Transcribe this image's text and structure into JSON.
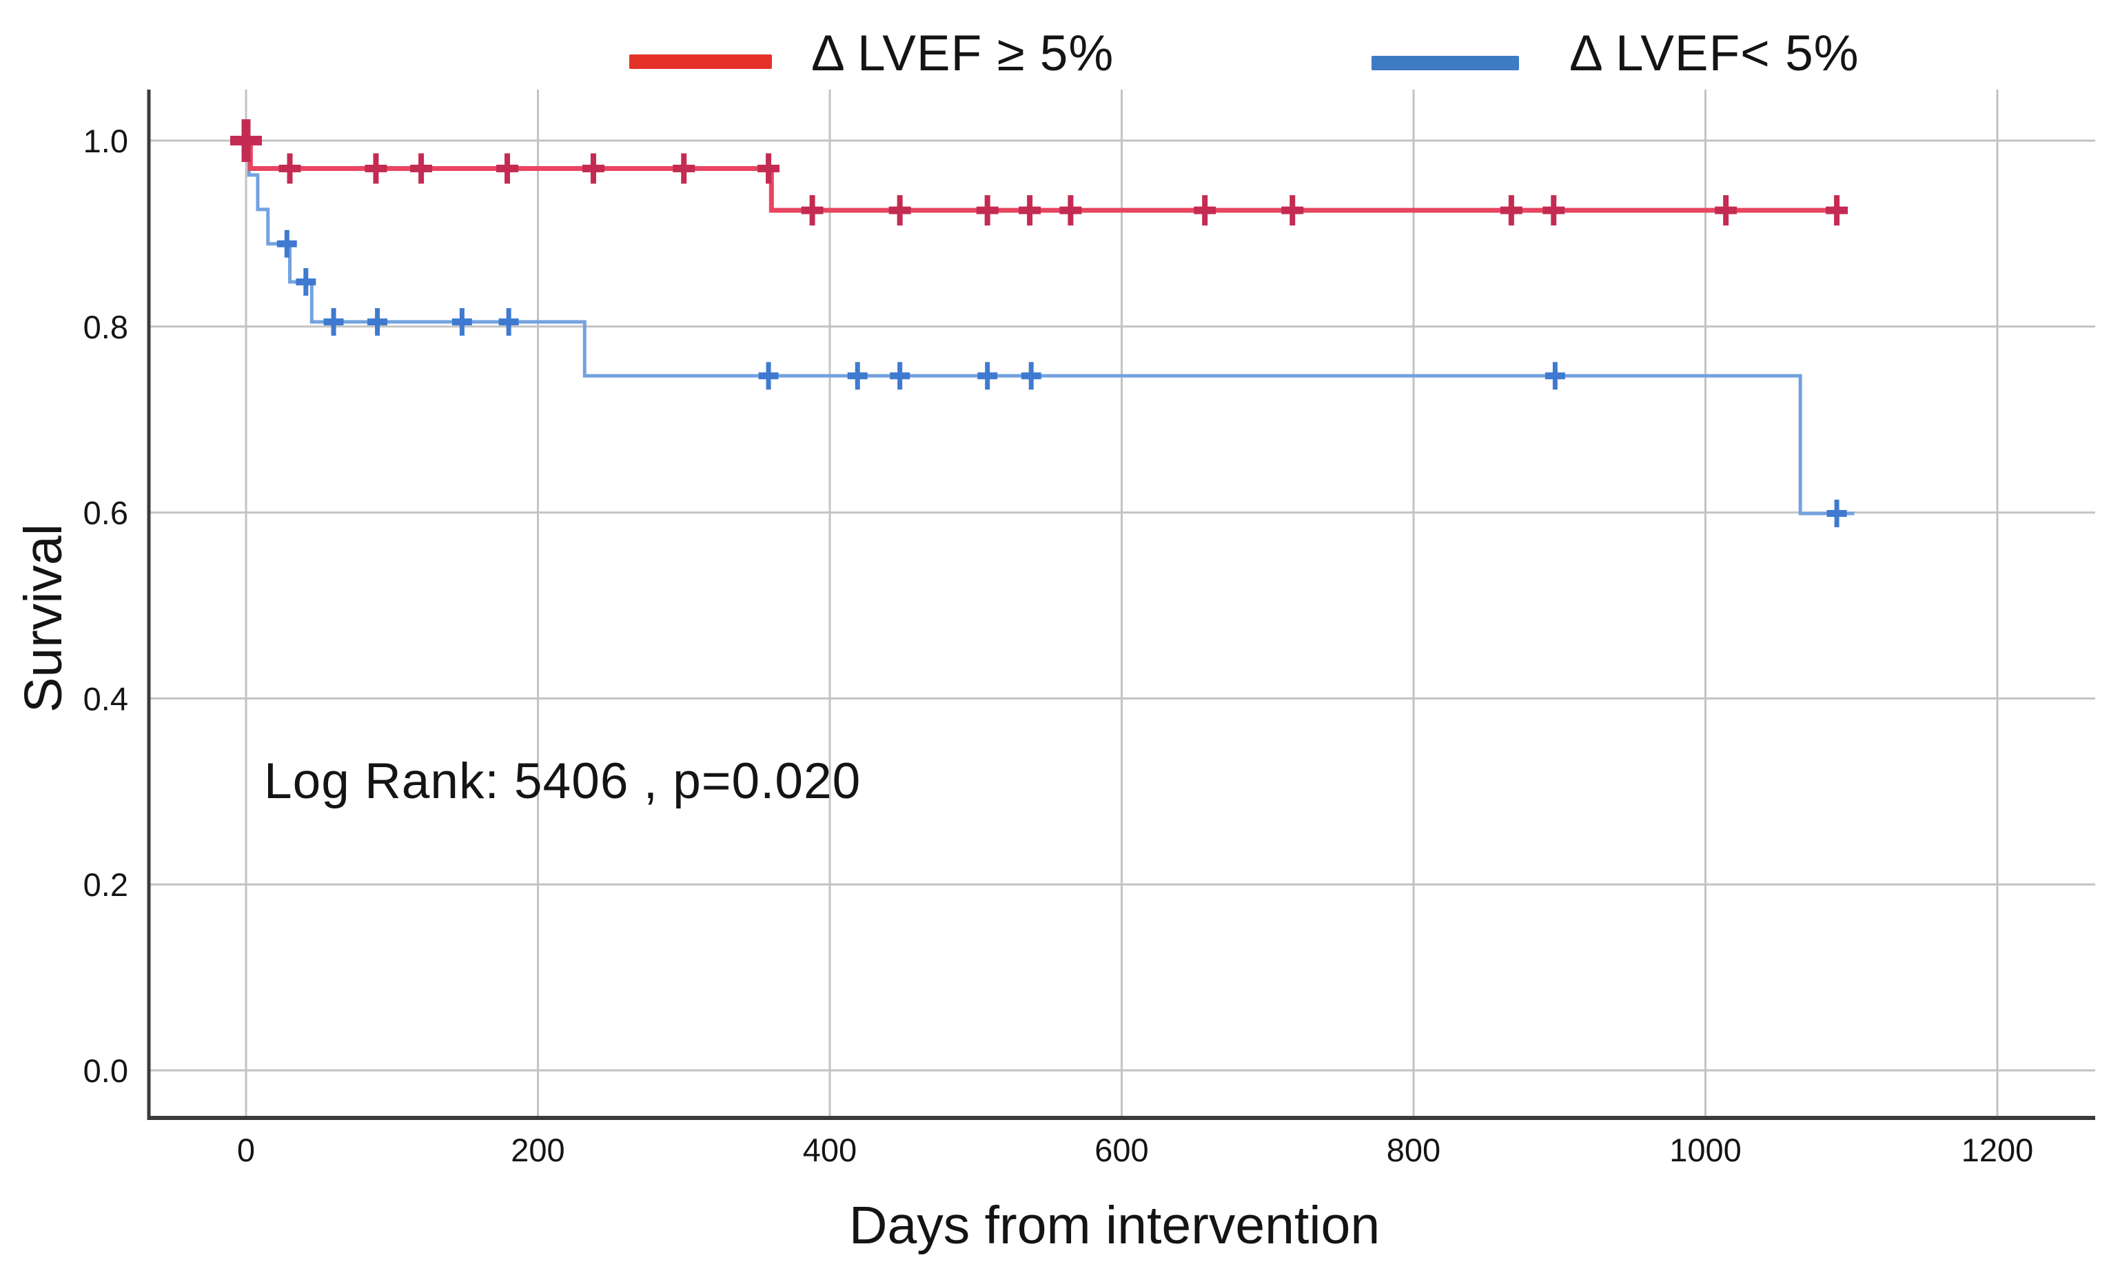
{
  "page": {
    "background": "#ffffff"
  },
  "legend": {
    "items": [
      {
        "label": "Δ LVEF ≥ 5%",
        "swatch_color": "#e43229"
      },
      {
        "label": "Δ LVEF< 5%",
        "swatch_color": "#3e7bc2"
      }
    ]
  },
  "chart_data": {
    "type": "line",
    "subtype": "kaplan-meier-step",
    "title": "",
    "xlabel": "Days from intervention",
    "ylabel": "Survival",
    "xlim": [
      0,
      1200
    ],
    "ylim": [
      0.0,
      1.0
    ],
    "xticks": [
      0,
      200,
      400,
      600,
      800,
      1000,
      1200
    ],
    "yticks": [
      1.0,
      0.8,
      0.6,
      0.4,
      0.2,
      0.0
    ],
    "grid": true,
    "gridline_color": "#c3c3c3",
    "axis_color": "#3b3b3b",
    "legend_position": "top",
    "stats_label": "Log Rank: 5406 , p=0.020",
    "series": [
      {
        "name": "Δ LVEF ≥ 5%",
        "line_color": "#e84560",
        "censor_color": "#c42b52",
        "line_width": 7,
        "steps": [
          [
            0,
            1.0
          ],
          [
            3,
            0.97
          ],
          [
            360,
            0.925
          ]
        ],
        "end_day": 1095,
        "censors": [
          [
            30,
            0.97
          ],
          [
            89,
            0.97
          ],
          [
            120,
            0.97
          ],
          [
            179,
            0.97
          ],
          [
            238,
            0.97
          ],
          [
            300,
            0.97
          ],
          [
            358,
            0.97
          ],
          [
            388,
            0.925
          ],
          [
            448,
            0.925
          ],
          [
            508,
            0.925
          ],
          [
            537,
            0.925
          ],
          [
            565,
            0.925
          ],
          [
            657,
            0.925
          ],
          [
            717,
            0.925
          ],
          [
            867,
            0.925
          ],
          [
            896,
            0.925
          ],
          [
            1014,
            0.925
          ],
          [
            1090,
            0.925
          ]
        ],
        "start_marker": [
          0,
          1.0
        ]
      },
      {
        "name": "Δ LVEF< 5%",
        "line_color": "#73a2e0",
        "censor_color": "#3f7ad0",
        "line_width": 5,
        "steps": [
          [
            0,
            1.0
          ],
          [
            2,
            0.963
          ],
          [
            8,
            0.926
          ],
          [
            15,
            0.889
          ],
          [
            30,
            0.848
          ],
          [
            45,
            0.805
          ],
          [
            232,
            0.747
          ],
          [
            1065,
            0.599
          ]
        ],
        "end_day": 1102,
        "censors": [
          [
            28,
            0.889
          ],
          [
            41,
            0.848
          ],
          [
            60,
            0.805
          ],
          [
            90,
            0.805
          ],
          [
            148,
            0.805
          ],
          [
            180,
            0.805
          ],
          [
            358,
            0.747
          ],
          [
            419,
            0.747
          ],
          [
            448,
            0.747
          ],
          [
            508,
            0.747
          ],
          [
            538,
            0.747
          ],
          [
            897,
            0.747
          ],
          [
            1090,
            0.599
          ]
        ]
      }
    ]
  }
}
